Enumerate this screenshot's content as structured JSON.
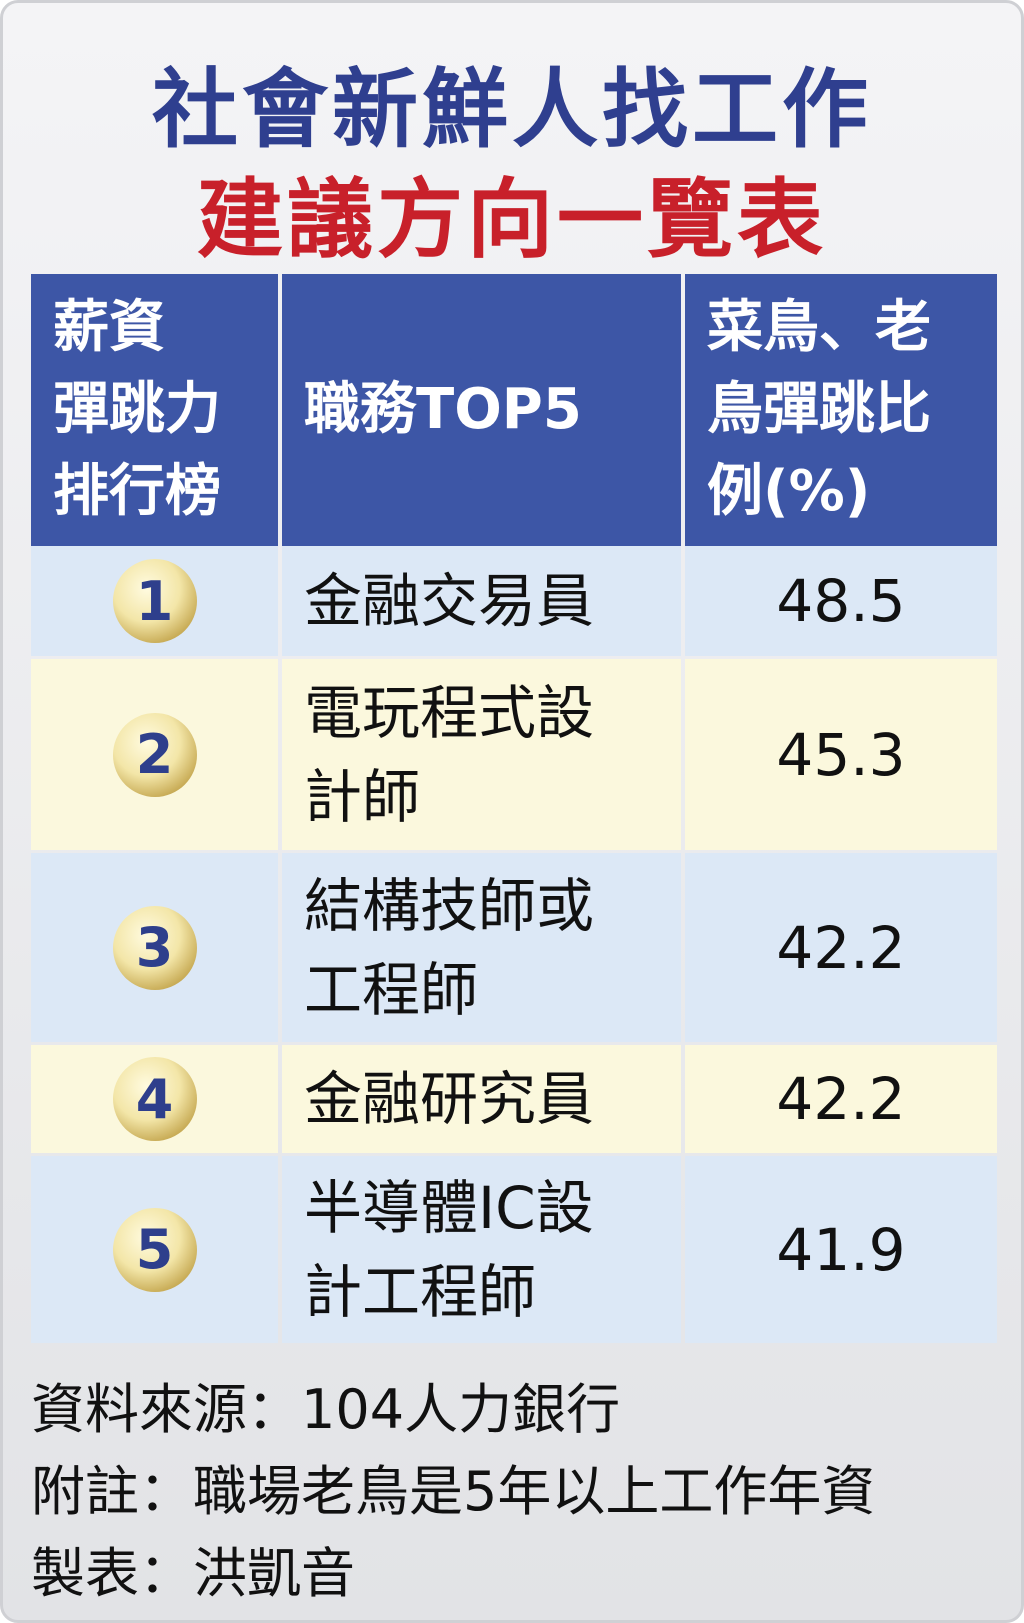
{
  "header": {
    "title": "社會新鮮人找工作",
    "subtitle": "建議方向一覽表"
  },
  "table": {
    "columns": [
      [
        "薪資",
        "彈跳力",
        "排行榜"
      ],
      [
        "職務TOP5"
      ],
      [
        "菜鳥、老",
        "鳥彈跳比",
        "例(%)"
      ]
    ],
    "rows": [
      [
        "1",
        "金融交易員",
        "48.5"
      ],
      [
        "2",
        "電玩程式設計師",
        "45.3"
      ],
      [
        "3",
        "結構技師或工程師",
        "42.2"
      ],
      [
        "4",
        "金融研究員",
        "42.2"
      ],
      [
        "5",
        "半導體IC設計工程師",
        "41.9"
      ]
    ]
  },
  "footer": [
    "資料來源：104人力銀行",
    "附註：職場老鳥是5年以上工作年資",
    "製表：洪凱音"
  ]
}
